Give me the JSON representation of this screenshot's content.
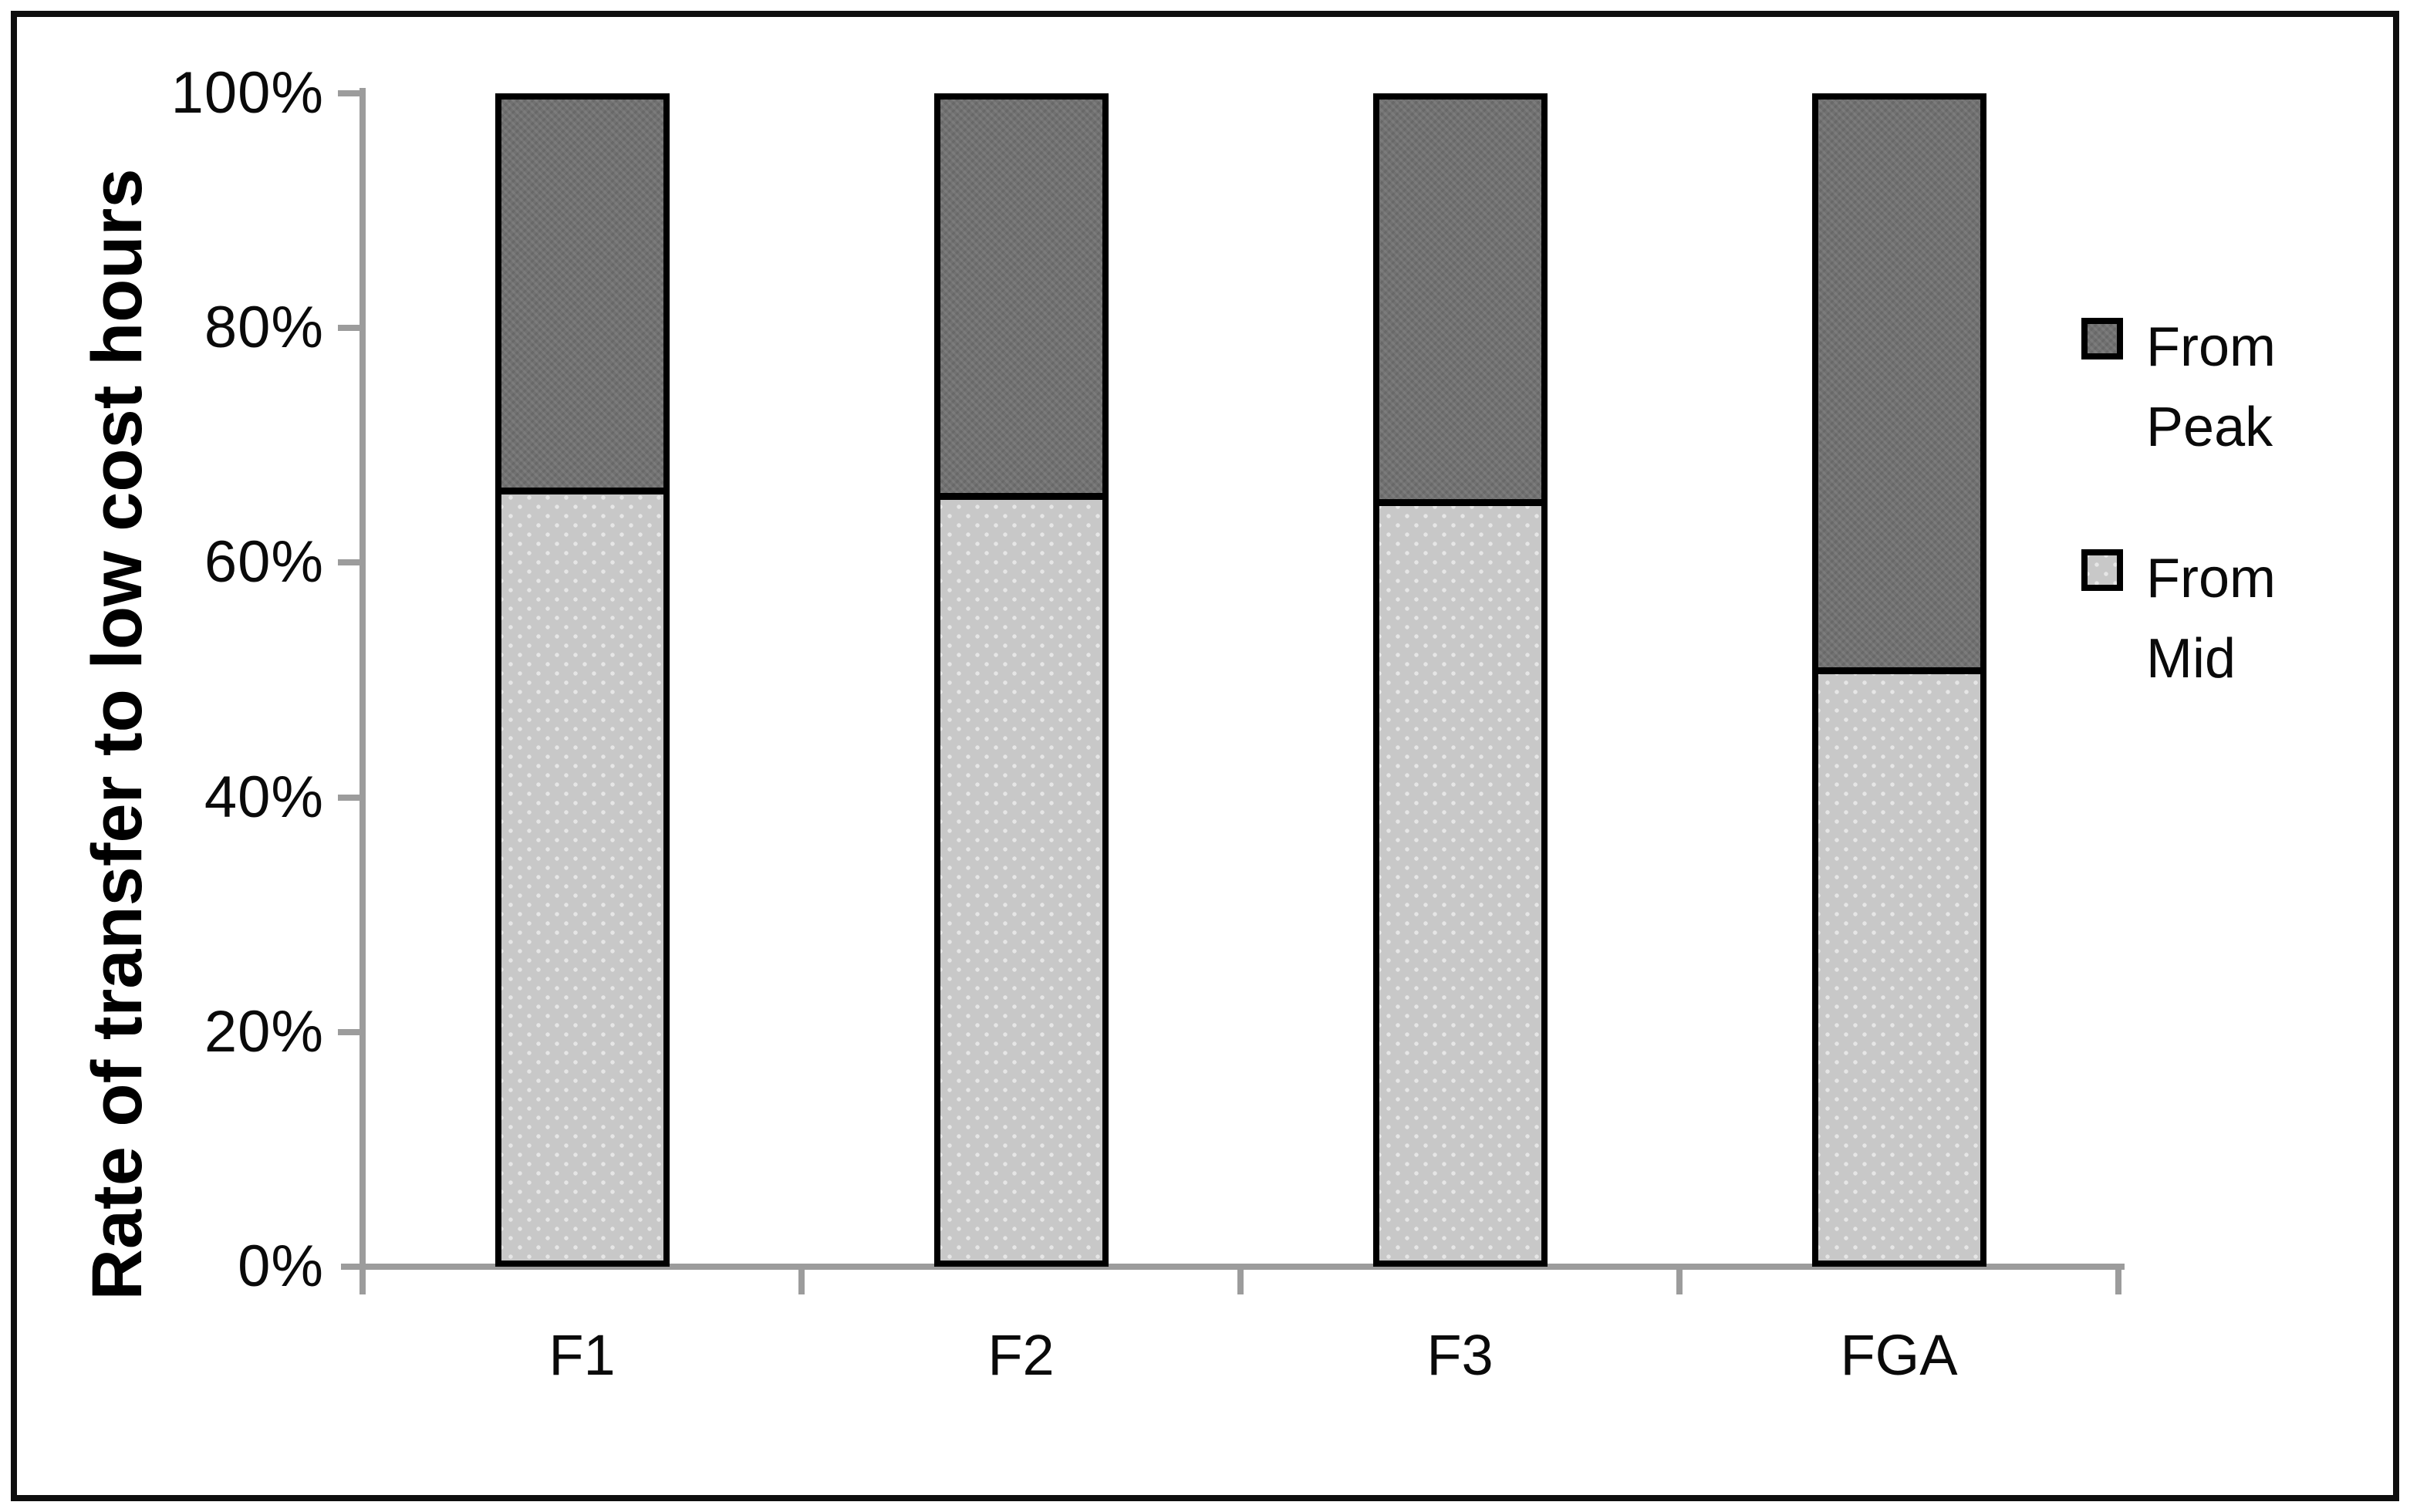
{
  "figure": {
    "y_axis_title": "Rate of transfer to low cost hours"
  },
  "chart_data": {
    "type": "bar",
    "stacked": true,
    "orientation": "vertical",
    "title": "",
    "xlabel": "",
    "ylabel": "Rate of transfer to low cost hours",
    "categories": [
      "F1",
      "F2",
      "F3",
      "FGA"
    ],
    "series": [
      {
        "name": "From Mid",
        "values": [
          66,
          65.5,
          65,
          50.5
        ],
        "color": "#c8c8c8",
        "position": "bottom"
      },
      {
        "name": "From Peak",
        "values": [
          34,
          34.5,
          35,
          49.5
        ],
        "color": "#717171",
        "position": "top"
      }
    ],
    "ylim": [
      0,
      100
    ],
    "yticks": [
      {
        "value": 0,
        "label": "0%"
      },
      {
        "value": 20,
        "label": "20%"
      },
      {
        "value": 40,
        "label": "40%"
      },
      {
        "value": 60,
        "label": "60%"
      },
      {
        "value": 80,
        "label": "80%"
      },
      {
        "value": 100,
        "label": "100%"
      }
    ],
    "grid": false,
    "legend": {
      "position": "right",
      "entries": [
        {
          "label": "From Peak",
          "color": "#717171"
        },
        {
          "label": "From Mid",
          "color": "#c8c8c8"
        }
      ]
    },
    "colors": {
      "bar_border": "#000000",
      "axis_line": "#9c9c9c",
      "text": "#000000",
      "frame_border": "#0e0e0e",
      "background": "#ffffff"
    }
  }
}
